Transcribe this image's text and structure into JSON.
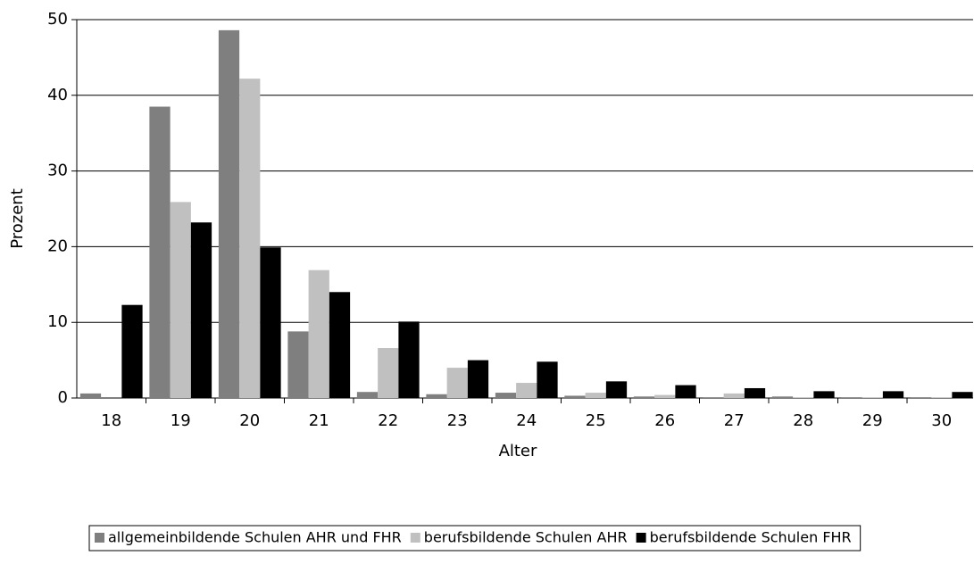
{
  "chart_data": {
    "type": "bar",
    "x_label": "Alter",
    "y_label": "Prozent",
    "categories": [
      "18",
      "19",
      "20",
      "21",
      "22",
      "23",
      "24",
      "25",
      "26",
      "27",
      "28",
      "29",
      "30"
    ],
    "series": [
      {
        "name": "allgemeinbildende Schulen AHR und FHR",
        "color": "#7f7f7f",
        "values": [
          0.6,
          38.5,
          48.6,
          8.8,
          0.8,
          0.5,
          0.7,
          0.3,
          0.2,
          0.1,
          0.2,
          0.1,
          0.1
        ]
      },
      {
        "name": "berufsbildende Schulen AHR",
        "color": "#c0c0c0",
        "values": [
          0,
          25.9,
          42.2,
          16.9,
          6.6,
          4.0,
          2.0,
          0.7,
          0.4,
          0.6,
          0.1,
          0.1,
          0.1
        ]
      },
      {
        "name": "berufsbildende Schulen FHR",
        "color": "#000000",
        "values": [
          12.3,
          23.2,
          19.9,
          14.0,
          10.1,
          5.0,
          4.8,
          2.2,
          1.7,
          1.3,
          0.9,
          0.9,
          0.8
        ]
      }
    ],
    "ylim": [
      0,
      50
    ],
    "yticks": [
      0,
      10,
      20,
      30,
      40,
      50
    ],
    "grid": true,
    "legend": "bottom"
  }
}
